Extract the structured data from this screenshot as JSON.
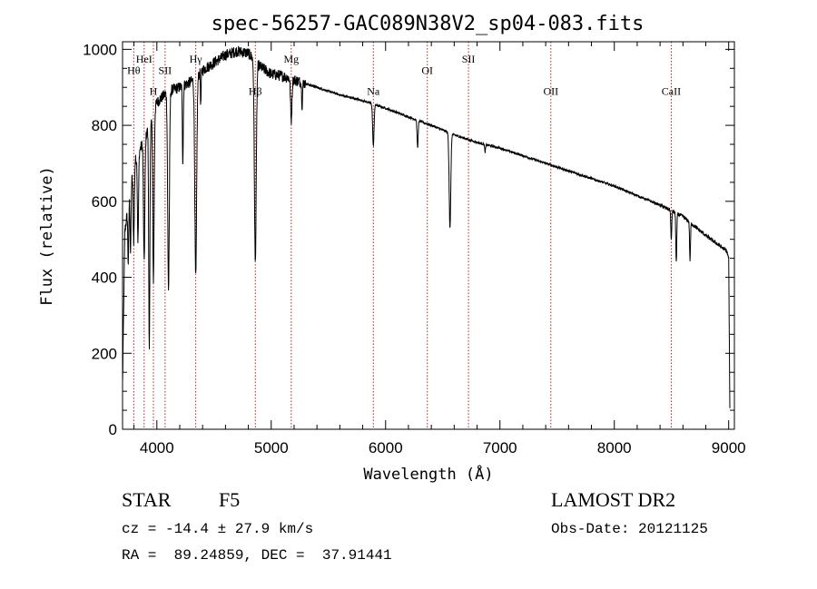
{
  "chart_data": {
    "type": "line",
    "title": "spec-56257-GAC089N38V2_sp04-083.fits",
    "xlabel": "Wavelength (Å)",
    "ylabel": "Flux (relative)",
    "xlim": [
      3700,
      9050
    ],
    "ylim": [
      0,
      1020
    ],
    "xticks": [
      4000,
      5000,
      6000,
      7000,
      8000,
      9000
    ],
    "yticks": [
      0,
      200,
      400,
      600,
      800,
      1000
    ],
    "line_color": "#000000",
    "marker_color": "#b22222",
    "spectral_lines": [
      {
        "label": "Hθ",
        "x": 3798,
        "label_y": 935
      },
      {
        "label": "HeI",
        "x": 3889,
        "label_y": 965
      },
      {
        "label": "H",
        "x": 3970,
        "label_y": 880
      },
      {
        "label": "SII",
        "x": 4072,
        "label_y": 935
      },
      {
        "label": "Hγ",
        "x": 4340,
        "label_y": 965
      },
      {
        "label": "Hβ",
        "x": 4861,
        "label_y": 880
      },
      {
        "label": "Mg",
        "x": 5175,
        "label_y": 965
      },
      {
        "label": "Na",
        "x": 5893,
        "label_y": 880
      },
      {
        "label": "OI",
        "x": 6365,
        "label_y": 935
      },
      {
        "label": "SII",
        "x": 6725,
        "label_y": 965
      },
      {
        "label": "OII",
        "x": 7445,
        "label_y": 880
      },
      {
        "label": "CaII",
        "x": 8498,
        "label_y": 880
      }
    ],
    "continuum": [
      [
        3700,
        120
      ],
      [
        3720,
        520
      ],
      [
        3800,
        700
      ],
      [
        3900,
        770
      ],
      [
        4000,
        860
      ],
      [
        4100,
        890
      ],
      [
        4200,
        900
      ],
      [
        4300,
        915
      ],
      [
        4400,
        945
      ],
      [
        4500,
        965
      ],
      [
        4600,
        985
      ],
      [
        4700,
        995
      ],
      [
        4800,
        990
      ],
      [
        4900,
        955
      ],
      [
        5000,
        935
      ],
      [
        5100,
        930
      ],
      [
        5200,
        920
      ],
      [
        5400,
        900
      ],
      [
        5600,
        880
      ],
      [
        5800,
        865
      ],
      [
        6000,
        845
      ],
      [
        6200,
        822
      ],
      [
        6400,
        800
      ],
      [
        6600,
        775
      ],
      [
        6800,
        755
      ],
      [
        7000,
        740
      ],
      [
        7200,
        720
      ],
      [
        7400,
        700
      ],
      [
        7600,
        680
      ],
      [
        7800,
        660
      ],
      [
        8000,
        640
      ],
      [
        8200,
        615
      ],
      [
        8400,
        590
      ],
      [
        8600,
        560
      ],
      [
        8800,
        510
      ],
      [
        8980,
        470
      ],
      [
        9000,
        450
      ],
      [
        9010,
        60
      ]
    ],
    "absorptions": [
      {
        "x": 3750,
        "depth": 150,
        "width": 4
      },
      {
        "x": 3770,
        "depth": 170,
        "width": 4
      },
      {
        "x": 3798,
        "depth": 200,
        "width": 5
      },
      {
        "x": 3835,
        "depth": 230,
        "width": 5
      },
      {
        "x": 3889,
        "depth": 320,
        "width": 6
      },
      {
        "x": 3934,
        "depth": 600,
        "width": 5
      },
      {
        "x": 3970,
        "depth": 440,
        "width": 6
      },
      {
        "x": 4102,
        "depth": 520,
        "width": 7
      },
      {
        "x": 4227,
        "depth": 200,
        "width": 4
      },
      {
        "x": 4340,
        "depth": 530,
        "width": 8
      },
      {
        "x": 4384,
        "depth": 90,
        "width": 3
      },
      {
        "x": 4861,
        "depth": 530,
        "width": 8
      },
      {
        "x": 5175,
        "depth": 110,
        "width": 6
      },
      {
        "x": 5270,
        "depth": 60,
        "width": 4
      },
      {
        "x": 5893,
        "depth": 110,
        "width": 6
      },
      {
        "x": 6280,
        "depth": 70,
        "width": 5
      },
      {
        "x": 6563,
        "depth": 250,
        "width": 7
      },
      {
        "x": 6870,
        "depth": 20,
        "width": 4
      },
      {
        "x": 8498,
        "depth": 80,
        "width": 4
      },
      {
        "x": 8542,
        "depth": 130,
        "width": 4
      },
      {
        "x": 8662,
        "depth": 100,
        "width": 4
      }
    ]
  },
  "info": {
    "class": "STAR",
    "subclass": "F5",
    "survey": "LAMOST DR2",
    "cz": "cz = -14.4 ± 27.9 km/s",
    "obs_date": "Obs-Date: 20121125",
    "radec": "RA =  89.24859, DEC =  37.91441"
  }
}
